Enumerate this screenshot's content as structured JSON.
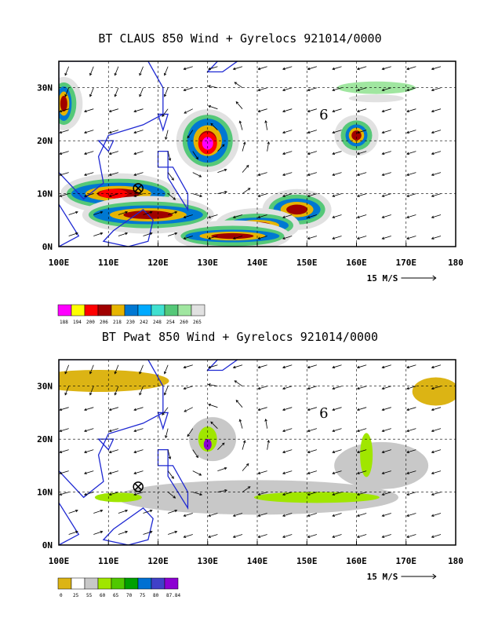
{
  "panels": [
    {
      "title": "BT CLAUS 850 Wind + Gyrelocs 921014/0000",
      "lon_labels": [
        "100E",
        "110E",
        "120E",
        "130E",
        "140E",
        "150E",
        "160E",
        "170E",
        "180"
      ],
      "lat_labels": [
        "30N",
        "20N",
        "10N",
        "0N"
      ],
      "wind_ref": "15 M/S",
      "storm_label": "6",
      "legend": {
        "colors": [
          "#ff00ff",
          "#ffff00",
          "#ff0000",
          "#a00000",
          "#e6b400",
          "#0078d2",
          "#00aaff",
          "#40e0d0",
          "#55c878",
          "#a0e6a0",
          "#e1e1e1"
        ],
        "labels": [
          "188",
          "194",
          "200",
          "206",
          "218",
          "230",
          "242",
          "248",
          "254",
          "260",
          "265"
        ]
      }
    },
    {
      "title": "BT Pwat 850 Wind + Gyrelocs 921014/0000",
      "lon_labels": [
        "100E",
        "110E",
        "120E",
        "130E",
        "140E",
        "150E",
        "160E",
        "170E",
        "180"
      ],
      "lat_labels": [
        "30N",
        "20N",
        "10N",
        "0N"
      ],
      "wind_ref": "15 M/S",
      "storm_label": "6",
      "legend": {
        "colors": [
          "#dcb414",
          "#ffffff",
          "#c8c8c8",
          "#a0e600",
          "#50c800",
          "#00a000",
          "#0070d2",
          "#4040c8",
          "#8c00d2"
        ],
        "labels": [
          "0",
          "25",
          "55",
          "60",
          "65",
          "70",
          "75",
          "80",
          "87.84"
        ]
      }
    }
  ],
  "map": {
    "lon_range": [
      100,
      180
    ],
    "lat_range": [
      0,
      35
    ],
    "coast_color": "#1e28d2",
    "grid_style": "dashed"
  }
}
